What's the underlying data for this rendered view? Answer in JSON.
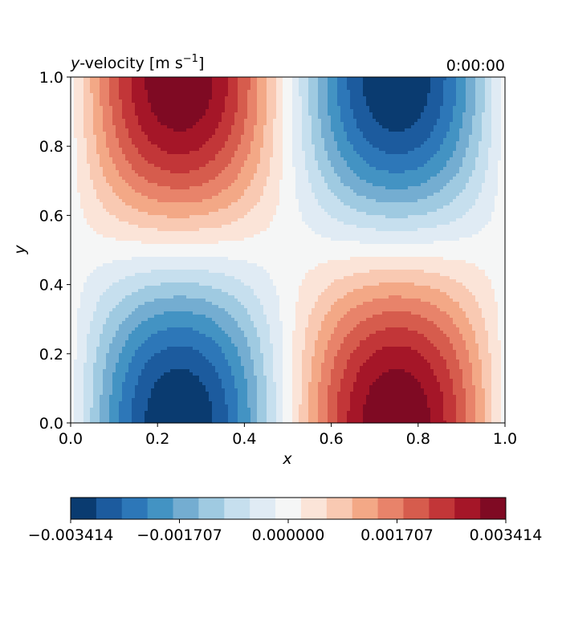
{
  "chart_data": {
    "type": "heatmap",
    "title_left": {
      "var": "y",
      "text": "-velocity [m s",
      "sup": "−1",
      "close": "]"
    },
    "title_right": "0:00:00",
    "xlabel": "x",
    "ylabel": "y",
    "xlim": [
      0.0,
      1.0
    ],
    "ylim": [
      0.0,
      1.0
    ],
    "x_ticks": [
      "0.0",
      "0.2",
      "0.4",
      "0.6",
      "0.8",
      "1.0"
    ],
    "y_ticks": [
      "0.0",
      "0.2",
      "0.4",
      "0.6",
      "0.8",
      "1.0"
    ],
    "field": "v = -A * sin(2*pi*x) * cos(pi*y)",
    "amplitude": 0.003414,
    "levels": 17,
    "colormap": [
      "#0a3b70",
      "#1c5b9e",
      "#2d77b8",
      "#4393c3",
      "#74add1",
      "#9fcae1",
      "#c6dfee",
      "#e0ebf4",
      "#f5f6f6",
      "#fbe4d8",
      "#f9c9b2",
      "#f3a886",
      "#e8836a",
      "#d65c4d",
      "#c23638",
      "#a51628",
      "#7f0a23"
    ],
    "colorbar_ticks": [
      "−0.003414",
      "−0.001707",
      "0.000000",
      "0.001707",
      "0.003414"
    ],
    "colorbar_tick_values": [
      -0.003414,
      -0.001707,
      0.0,
      0.001707,
      0.003414
    ]
  }
}
